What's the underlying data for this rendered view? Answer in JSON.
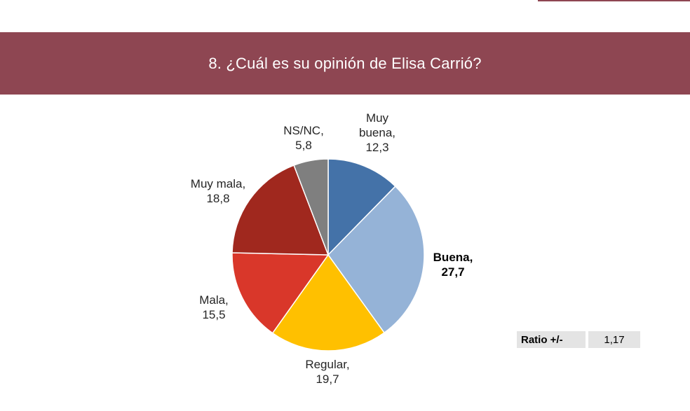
{
  "header": {
    "title": "8. ¿Cuál es su opinión de Elisa Carrió?"
  },
  "chart_data": {
    "type": "pie",
    "title": "",
    "slices": [
      {
        "label": "Muy buena",
        "value": 12.3,
        "display": "12,3",
        "color": "#4472a8",
        "bold": false
      },
      {
        "label": "Buena",
        "value": 27.7,
        "display": "27,7",
        "color": "#95b3d7",
        "bold": true
      },
      {
        "label": "Regular",
        "value": 19.7,
        "display": "19,7",
        "color": "#ffc000",
        "bold": false
      },
      {
        "label": "Mala",
        "value": 15.5,
        "display": "15,5",
        "color": "#d9372a",
        "bold": false
      },
      {
        "label": "Muy mala",
        "value": 18.8,
        "display": "18,8",
        "color": "#a0281e",
        "bold": false
      },
      {
        "label": "NS/NC",
        "value": 5.8,
        "display": "5,8",
        "color": "#7f7f7f",
        "bold": false
      }
    ],
    "label_texts": [
      "Muy\nbuena,\n12,3",
      "Buena,\n27,7",
      "Regular,\n19,7",
      "Mala,\n15,5",
      "Muy mala,\n18,8",
      "NS/NC,\n5,8"
    ]
  },
  "ratio": {
    "label": "Ratio +/-",
    "value": "1,17"
  }
}
